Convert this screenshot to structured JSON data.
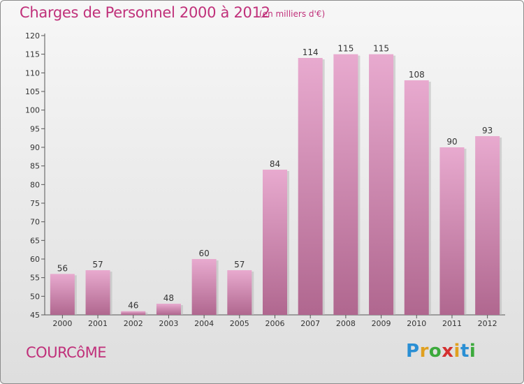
{
  "header": {
    "title": "Charges de Personnel 2000 à 2012",
    "subtitle": "(en milliers d'€)"
  },
  "commune": "COURCôME",
  "logo": {
    "letters": [
      "P",
      "r",
      "o",
      "x",
      "i",
      "t",
      "i"
    ],
    "colors": [
      "#2a8fd4",
      "#e0a020",
      "#3caa3c",
      "#d43030",
      "#e0a020",
      "#2a8fd4",
      "#3caa3c"
    ]
  },
  "chart_data": {
    "type": "bar",
    "title": "Charges de Personnel 2000 à 2012",
    "subtitle": "(en milliers d'€)",
    "categories": [
      "2000",
      "2001",
      "2002",
      "2003",
      "2004",
      "2005",
      "2006",
      "2007",
      "2008",
      "2009",
      "2010",
      "2011",
      "2012"
    ],
    "values": [
      56,
      57,
      46,
      48,
      60,
      57,
      84,
      114,
      115,
      115,
      108,
      90,
      93
    ],
    "ylim": [
      45,
      120
    ],
    "yticks": [
      45,
      50,
      55,
      60,
      65,
      70,
      75,
      80,
      85,
      90,
      95,
      100,
      105,
      110,
      115,
      120
    ],
    "grid": false,
    "legend": "none",
    "colors": {
      "bar_light": "#e8aacf",
      "bar_dark": "#b0678f",
      "text": "#c0307a"
    }
  }
}
